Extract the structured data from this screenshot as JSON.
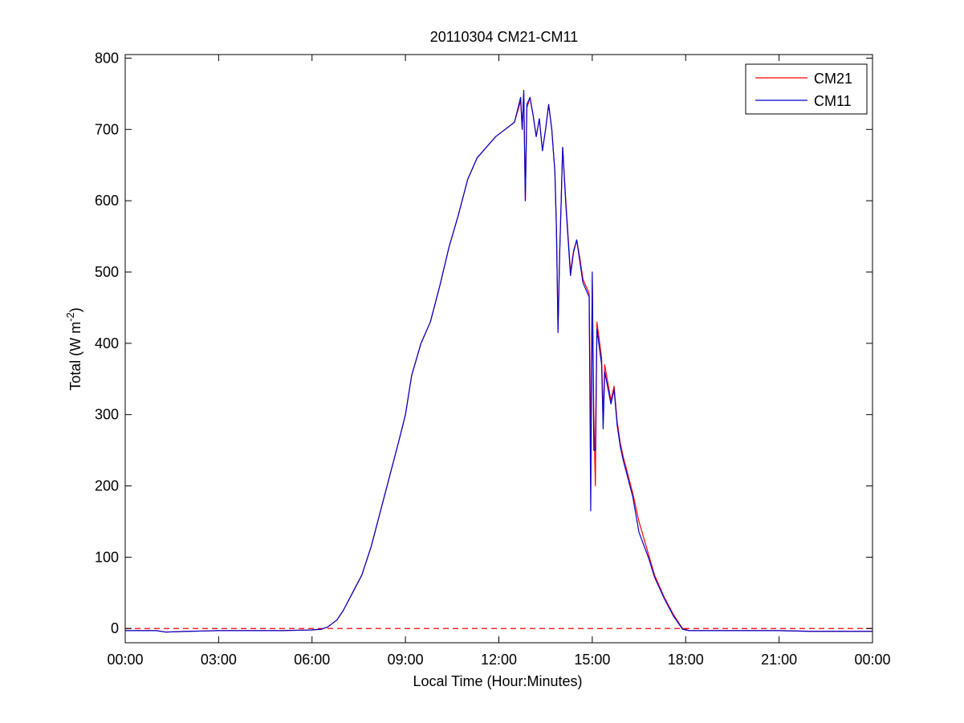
{
  "chart_data": {
    "type": "line",
    "title": "20110304 CM21-CM11",
    "xlabel": "Local Time (Hour:Minutes)",
    "ylabel": {
      "prefix": "Total (W m",
      "superscript": "-2",
      "suffix": ")"
    },
    "x_unit": "hours",
    "xlim": [
      0,
      24
    ],
    "ylim": [
      -20,
      805
    ],
    "x_ticks": [
      0,
      3,
      6,
      9,
      12,
      15,
      18,
      21,
      24
    ],
    "x_tick_labels": [
      "00:00",
      "03:00",
      "06:00",
      "09:00",
      "12:00",
      "15:00",
      "18:00",
      "21:00",
      "00:00"
    ],
    "y_ticks": [
      0,
      100,
      200,
      300,
      400,
      500,
      600,
      700,
      800
    ],
    "y_tick_labels": [
      "0",
      "100",
      "200",
      "300",
      "400",
      "500",
      "600",
      "700",
      "800"
    ],
    "grid": false,
    "legend_position": "top-right",
    "reference_line": {
      "y": 0,
      "color": "#ff0000",
      "style": "dashed"
    },
    "series": [
      {
        "name": "CM21",
        "color": "#ff0000",
        "points": [
          [
            0,
            -3
          ],
          [
            1,
            -3
          ],
          [
            1.3,
            -5
          ],
          [
            2,
            -4
          ],
          [
            3,
            -3
          ],
          [
            4,
            -3
          ],
          [
            5,
            -3
          ],
          [
            6,
            -2
          ],
          [
            6.3,
            -1
          ],
          [
            6.5,
            2
          ],
          [
            6.8,
            12
          ],
          [
            7.0,
            25
          ],
          [
            7.3,
            50
          ],
          [
            7.6,
            75
          ],
          [
            7.9,
            115
          ],
          [
            8.2,
            165
          ],
          [
            8.5,
            215
          ],
          [
            8.8,
            265
          ],
          [
            9.0,
            300
          ],
          [
            9.2,
            355
          ],
          [
            9.5,
            400
          ],
          [
            9.8,
            430
          ],
          [
            10.1,
            480
          ],
          [
            10.4,
            535
          ],
          [
            10.7,
            580
          ],
          [
            11.0,
            630
          ],
          [
            11.3,
            660
          ],
          [
            11.6,
            675
          ],
          [
            11.9,
            690
          ],
          [
            12.2,
            700
          ],
          [
            12.5,
            710
          ],
          [
            12.7,
            740
          ],
          [
            12.75,
            700
          ],
          [
            12.8,
            750
          ],
          [
            12.85,
            600
          ],
          [
            12.9,
            730
          ],
          [
            13.0,
            745
          ],
          [
            13.1,
            720
          ],
          [
            13.2,
            690
          ],
          [
            13.3,
            715
          ],
          [
            13.4,
            670
          ],
          [
            13.5,
            700
          ],
          [
            13.6,
            735
          ],
          [
            13.7,
            700
          ],
          [
            13.8,
            640
          ],
          [
            13.85,
            560
          ],
          [
            13.9,
            420
          ],
          [
            13.95,
            520
          ],
          [
            14.05,
            675
          ],
          [
            14.15,
            600
          ],
          [
            14.3,
            500
          ],
          [
            14.4,
            530
          ],
          [
            14.5,
            545
          ],
          [
            14.6,
            520
          ],
          [
            14.7,
            490
          ],
          [
            14.9,
            470
          ],
          [
            14.95,
            250
          ],
          [
            15.0,
            490
          ],
          [
            15.05,
            300
          ],
          [
            15.1,
            200
          ],
          [
            15.15,
            430
          ],
          [
            15.3,
            380
          ],
          [
            15.35,
            300
          ],
          [
            15.4,
            370
          ],
          [
            15.6,
            320
          ],
          [
            15.7,
            340
          ],
          [
            15.8,
            290
          ],
          [
            15.9,
            260
          ],
          [
            16.0,
            240
          ],
          [
            16.3,
            190
          ],
          [
            16.5,
            150
          ],
          [
            16.8,
            105
          ],
          [
            17.0,
            75
          ],
          [
            17.3,
            45
          ],
          [
            17.6,
            20
          ],
          [
            17.9,
            0
          ],
          [
            18.0,
            -1
          ],
          [
            18.1,
            -3
          ],
          [
            19,
            -3
          ],
          [
            20,
            -3
          ],
          [
            21,
            -3
          ],
          [
            22,
            -4
          ],
          [
            23,
            -4
          ],
          [
            24,
            -4
          ]
        ]
      },
      {
        "name": "CM11",
        "color": "#0000cc",
        "points": [
          [
            0,
            -3
          ],
          [
            1,
            -3
          ],
          [
            1.3,
            -5
          ],
          [
            2,
            -4
          ],
          [
            3,
            -3
          ],
          [
            4,
            -3
          ],
          [
            5,
            -3
          ],
          [
            6,
            -2
          ],
          [
            6.3,
            -1
          ],
          [
            6.5,
            2
          ],
          [
            6.8,
            12
          ],
          [
            7.0,
            25
          ],
          [
            7.3,
            50
          ],
          [
            7.6,
            75
          ],
          [
            7.9,
            115
          ],
          [
            8.2,
            165
          ],
          [
            8.5,
            215
          ],
          [
            8.8,
            265
          ],
          [
            9.0,
            300
          ],
          [
            9.2,
            355
          ],
          [
            9.5,
            400
          ],
          [
            9.8,
            430
          ],
          [
            10.1,
            480
          ],
          [
            10.4,
            535
          ],
          [
            10.7,
            580
          ],
          [
            11.0,
            630
          ],
          [
            11.3,
            660
          ],
          [
            11.6,
            675
          ],
          [
            11.9,
            690
          ],
          [
            12.2,
            700
          ],
          [
            12.5,
            710
          ],
          [
            12.7,
            745
          ],
          [
            12.75,
            700
          ],
          [
            12.8,
            755
          ],
          [
            12.85,
            600
          ],
          [
            12.9,
            735
          ],
          [
            13.0,
            745
          ],
          [
            13.1,
            720
          ],
          [
            13.2,
            690
          ],
          [
            13.3,
            715
          ],
          [
            13.4,
            670
          ],
          [
            13.5,
            700
          ],
          [
            13.6,
            735
          ],
          [
            13.7,
            700
          ],
          [
            13.8,
            640
          ],
          [
            13.85,
            560
          ],
          [
            13.9,
            415
          ],
          [
            13.95,
            520
          ],
          [
            14.05,
            675
          ],
          [
            14.15,
            595
          ],
          [
            14.3,
            495
          ],
          [
            14.4,
            528
          ],
          [
            14.5,
            545
          ],
          [
            14.6,
            515
          ],
          [
            14.7,
            485
          ],
          [
            14.9,
            465
          ],
          [
            14.95,
            165
          ],
          [
            15.0,
            500
          ],
          [
            15.05,
            250
          ],
          [
            15.1,
            250
          ],
          [
            15.15,
            420
          ],
          [
            15.3,
            370
          ],
          [
            15.35,
            280
          ],
          [
            15.4,
            360
          ],
          [
            15.6,
            315
          ],
          [
            15.7,
            335
          ],
          [
            15.8,
            285
          ],
          [
            15.9,
            255
          ],
          [
            16.0,
            235
          ],
          [
            16.3,
            185
          ],
          [
            16.5,
            135
          ],
          [
            16.8,
            100
          ],
          [
            17.0,
            72
          ],
          [
            17.3,
            43
          ],
          [
            17.6,
            18
          ],
          [
            17.9,
            -1
          ],
          [
            18.0,
            -2
          ],
          [
            18.1,
            -3
          ],
          [
            19,
            -3
          ],
          [
            20,
            -3
          ],
          [
            21,
            -3
          ],
          [
            22,
            -4
          ],
          [
            23,
            -4
          ],
          [
            24,
            -4
          ]
        ]
      }
    ]
  }
}
